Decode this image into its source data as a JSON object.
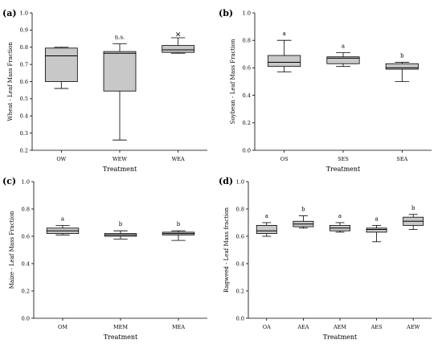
{
  "chart_data": [
    {
      "panel_label": "(a)",
      "type": "box",
      "ylabel": "Wheat - Leaf Mass Fraction",
      "xlabel": "Treatment",
      "ylim": [
        0.2,
        1.0
      ],
      "yticks": [
        "0.2",
        "0.3",
        "0.4",
        "0.5",
        "0.6",
        "0.7",
        "0.8",
        "0.9",
        "1.0"
      ],
      "categories": [
        "OW",
        "WEW",
        "WEA"
      ],
      "boxes": [
        {
          "min": 0.56,
          "q1": 0.6,
          "median": 0.75,
          "q3": 0.795,
          "max": 0.8,
          "annotation": ""
        },
        {
          "min": 0.26,
          "q1": 0.545,
          "median": 0.765,
          "q3": 0.775,
          "max": 0.82,
          "annotation": "n.s."
        },
        {
          "min": 0.765,
          "q1": 0.77,
          "median": 0.785,
          "q3": 0.81,
          "max": 0.855,
          "annotation": "",
          "outlier": 0.875
        }
      ]
    },
    {
      "panel_label": "(b)",
      "type": "box",
      "ylabel": "Soybean - Leaf Mass Fraction",
      "xlabel": "Treatment",
      "ylim": [
        0.0,
        1.0
      ],
      "yticks": [
        "0.0",
        "0.2",
        "0.4",
        "0.6",
        "0.8",
        "1.0"
      ],
      "categories": [
        "OS",
        "SES",
        "SEA"
      ],
      "boxes": [
        {
          "min": 0.57,
          "q1": 0.61,
          "median": 0.64,
          "q3": 0.69,
          "max": 0.8,
          "annotation": "a"
        },
        {
          "min": 0.61,
          "q1": 0.63,
          "median": 0.67,
          "q3": 0.68,
          "max": 0.71,
          "annotation": "a"
        },
        {
          "min": 0.5,
          "q1": 0.59,
          "median": 0.6,
          "q3": 0.63,
          "max": 0.64,
          "annotation": "b"
        }
      ]
    },
    {
      "panel_label": "(c)",
      "type": "box",
      "ylabel": "Maize - Leaf Mass Fraction",
      "xlabel": "Treatment",
      "ylim": [
        0.0,
        1.0
      ],
      "yticks": [
        "0.0",
        "0.2",
        "0.4",
        "0.6",
        "0.8",
        "1.0"
      ],
      "categories": [
        "OM",
        "MEM",
        "MEA"
      ],
      "boxes": [
        {
          "min": 0.61,
          "q1": 0.62,
          "median": 0.64,
          "q3": 0.66,
          "max": 0.68,
          "annotation": "a"
        },
        {
          "min": 0.58,
          "q1": 0.6,
          "median": 0.61,
          "q3": 0.62,
          "max": 0.64,
          "annotation": "b"
        },
        {
          "min": 0.57,
          "q1": 0.61,
          "median": 0.62,
          "q3": 0.63,
          "max": 0.64,
          "annotation": "b"
        }
      ]
    },
    {
      "panel_label": "(d)",
      "type": "box",
      "ylabel": "Ragweed - Leaf Mass fraction",
      "xlabel": "Treatment",
      "ylim": [
        0.0,
        1.0
      ],
      "yticks": [
        "0.0",
        "0.2",
        "0.4",
        "0.6",
        "0.8",
        "1.0"
      ],
      "categories": [
        "OA",
        "AEA",
        "AEM",
        "AES",
        "AEW"
      ],
      "boxes": [
        {
          "min": 0.6,
          "q1": 0.62,
          "median": 0.64,
          "q3": 0.68,
          "max": 0.7,
          "annotation": "a"
        },
        {
          "min": 0.66,
          "q1": 0.67,
          "median": 0.69,
          "q3": 0.71,
          "max": 0.75,
          "annotation": "b"
        },
        {
          "min": 0.63,
          "q1": 0.64,
          "median": 0.66,
          "q3": 0.68,
          "max": 0.7,
          "annotation": "a"
        },
        {
          "min": 0.56,
          "q1": 0.63,
          "median": 0.65,
          "q3": 0.66,
          "max": 0.68,
          "annotation": "a"
        },
        {
          "min": 0.65,
          "q1": 0.68,
          "median": 0.71,
          "q3": 0.74,
          "max": 0.76,
          "annotation": "b"
        }
      ]
    }
  ]
}
